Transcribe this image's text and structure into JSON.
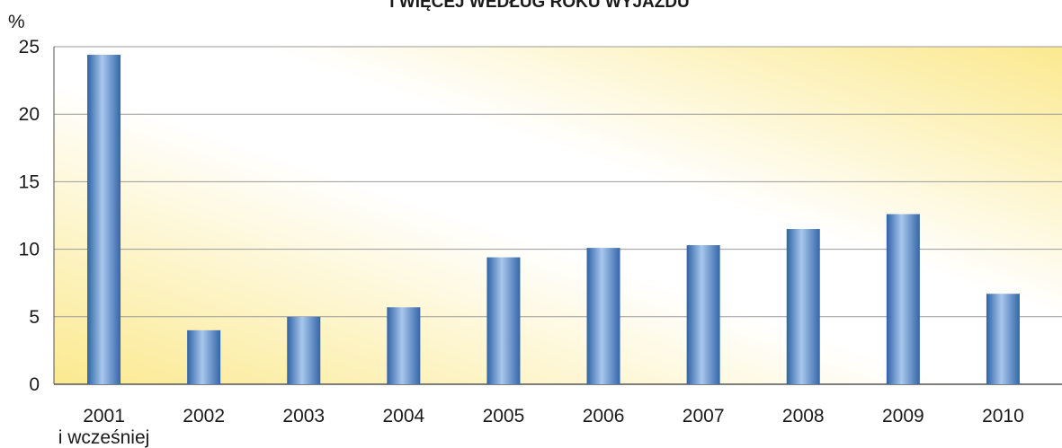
{
  "chart_data": {
    "type": "bar",
    "title": "I WIĘCEJ WEDŁUG ROKU WYJAZDU",
    "ylabel": "%",
    "xlabel": "",
    "categories": [
      "2001",
      "2002",
      "2003",
      "2004",
      "2005",
      "2006",
      "2007",
      "2008",
      "2009",
      "2010"
    ],
    "category_sublabels": [
      "i wcześniej",
      "",
      "",
      "",
      "",
      "",
      "",
      "",
      "",
      ""
    ],
    "values": [
      24.4,
      4.0,
      5.0,
      5.7,
      9.4,
      10.1,
      10.3,
      11.5,
      12.6,
      6.7
    ],
    "ylim": [
      0,
      25
    ],
    "yticks": [
      0,
      5,
      10,
      15,
      20,
      25
    ],
    "grid": true,
    "legend": "none",
    "colors": {
      "bar": "#4f86c6",
      "bar_highlight": "#a9c8ec",
      "bar_shadow": "#2c5d9c",
      "background_warm": "#fbeb9a",
      "background_light": "#ffffff",
      "grid": "#9a9a9a",
      "axis": "#555555"
    }
  }
}
